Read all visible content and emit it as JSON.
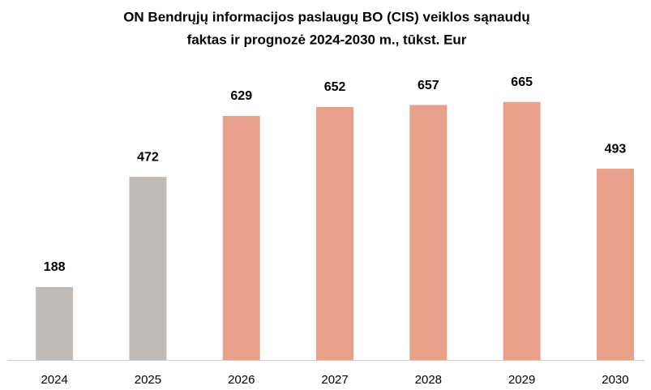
{
  "chart_data": {
    "type": "bar",
    "title": [
      "ON Bendrųjų informacijos paslaugų BO (CIS) veiklos sąnaudų",
      "faktas ir prognozė 2024-2030 m., tūkst. Eur"
    ],
    "categories": [
      "2024",
      "2025",
      "2026",
      "2027",
      "2028",
      "2029",
      "2030"
    ],
    "values": [
      188,
      472,
      629,
      652,
      657,
      665,
      493
    ],
    "colors": [
      "#bfbbb8",
      "#bfbbb8",
      "#e8a088",
      "#e8a088",
      "#e8a088",
      "#e8a088",
      "#e8a088"
    ],
    "ylim": [
      0,
      700
    ]
  }
}
